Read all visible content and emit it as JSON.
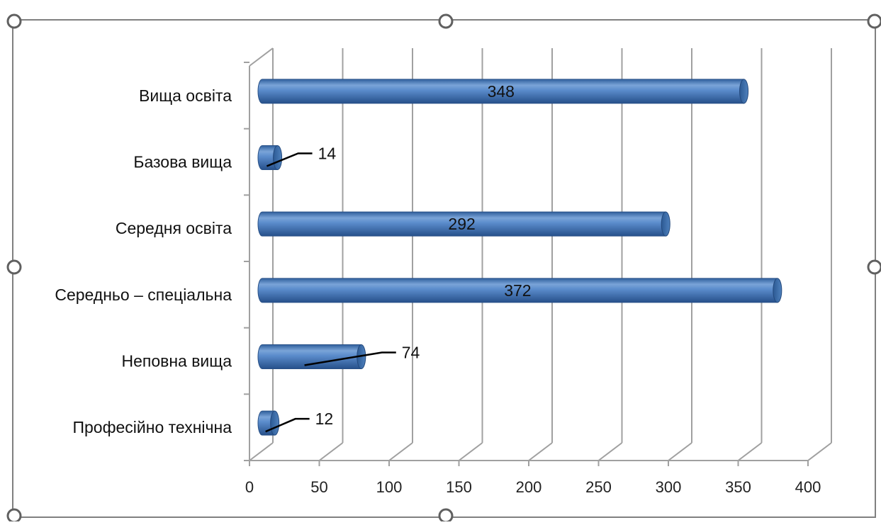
{
  "chart_data": {
    "type": "bar",
    "orientation": "horizontal",
    "style": "3d-cylinder",
    "categories": [
      "Вища освіта",
      "Базова вища",
      "Середня освіта",
      "Середньо – спеціальна",
      "Неповна вища",
      "Професійно технічна"
    ],
    "values": [
      348,
      14,
      292,
      372,
      74,
      12
    ],
    "data_labels": [
      "348",
      "14",
      "292",
      "372",
      "74",
      "12"
    ],
    "xlim": [
      0,
      400
    ],
    "x_ticks": [
      0,
      50,
      100,
      150,
      200,
      250,
      300,
      350,
      400
    ],
    "x_tick_labels": [
      "0",
      "50",
      "100",
      "150",
      "200",
      "250",
      "300",
      "350",
      "400"
    ],
    "title": "",
    "xlabel": "",
    "ylabel": "",
    "grid": true,
    "legend": "none",
    "colors": {
      "bar": "#4f81bd",
      "bar_light": "#9dbde6",
      "bar_dark": "#2c5a94",
      "grid": "#a0a0a0",
      "frame": "#808080"
    }
  }
}
